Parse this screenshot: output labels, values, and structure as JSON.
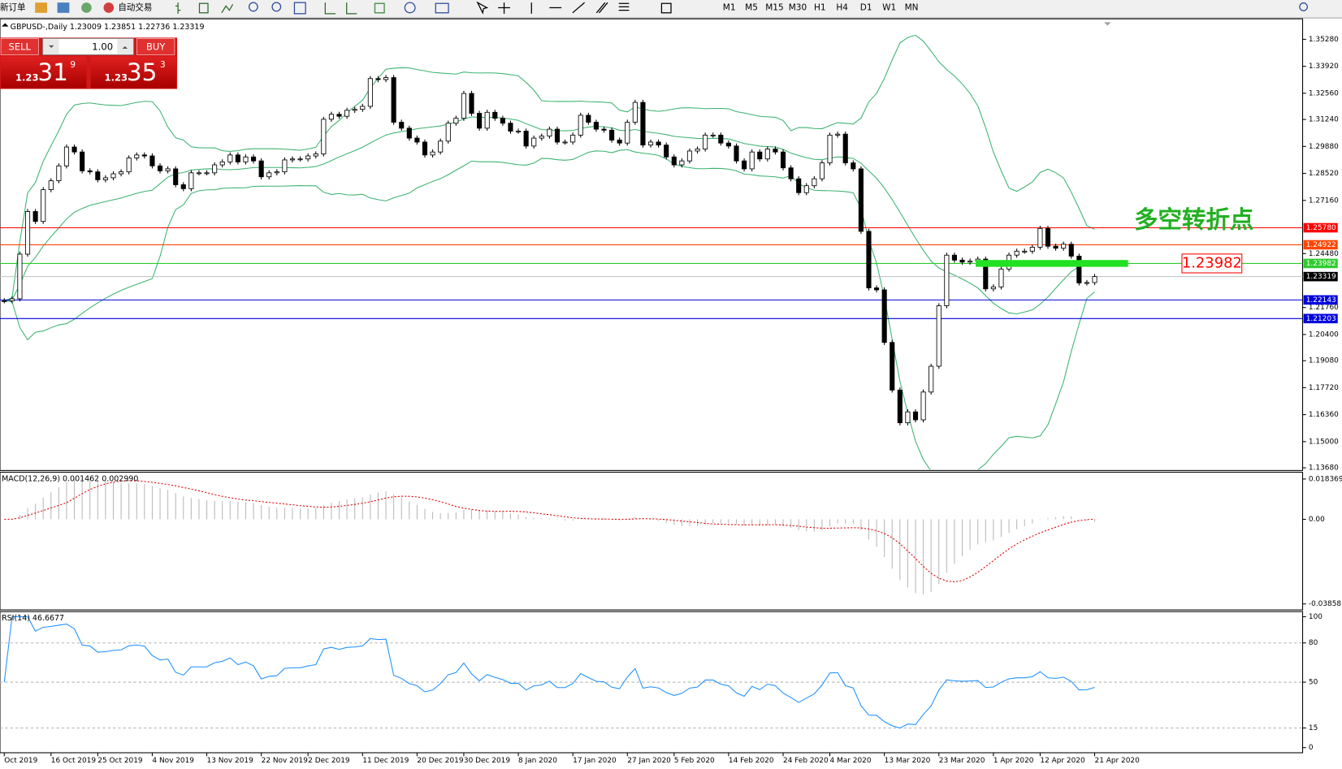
{
  "toolbar": {
    "new_order": "新订单",
    "auto_trading": "自动交易",
    "timeframes": [
      "M1",
      "M5",
      "M15",
      "M30",
      "H1",
      "H4",
      "D1",
      "W1",
      "MN"
    ]
  },
  "order_panel": {
    "sell": "SELL",
    "buy": "BUY",
    "lots": "1.00",
    "sell_price": {
      "big": "1.23",
      "main": "31",
      "pip": "9"
    },
    "buy_price": {
      "big": "1.23",
      "main": "35",
      "pip": "3"
    }
  },
  "chart_data": {
    "type": "candlestick",
    "title": "GBPUSD-,Daily  1.23009 1.23851 1.22736 1.23319",
    "values": [
      1.221,
      1.222,
      1.2445,
      1.266,
      1.261,
      1.277,
      1.2815,
      1.289,
      1.2985,
      1.296,
      1.2865,
      1.286,
      1.282,
      1.283,
      1.285,
      1.286,
      1.293,
      1.2945,
      1.294,
      1.289,
      1.2865,
      1.2875,
      1.2795,
      1.2775,
      1.2855,
      1.2855,
      1.2855,
      1.2895,
      1.291,
      1.2945,
      1.291,
      1.2935,
      1.2915,
      1.2835,
      1.2855,
      1.286,
      1.292,
      1.2925,
      1.2925,
      1.294,
      1.295,
      1.3125,
      1.315,
      1.314,
      1.317,
      1.3175,
      1.319,
      1.333,
      1.3325,
      1.3335,
      1.311,
      1.308,
      1.303,
      1.301,
      1.2945,
      1.296,
      1.3015,
      1.3105,
      1.313,
      1.3255,
      1.3155,
      1.308,
      1.316,
      1.313,
      1.3105,
      1.3065,
      1.3065,
      1.299,
      1.303,
      1.304,
      1.3075,
      1.301,
      1.301,
      1.3045,
      1.3145,
      1.311,
      1.3075,
      1.307,
      1.302,
      1.3005,
      1.311,
      1.321,
      1.2995,
      1.301,
      1.2995,
      1.2935,
      1.2895,
      1.2915,
      1.2965,
      1.2975,
      1.3045,
      1.3045,
      1.3005,
      1.299,
      1.2915,
      1.2875,
      1.296,
      1.2925,
      1.2975,
      1.296,
      1.288,
      1.2825,
      1.2755,
      1.279,
      1.2825,
      1.2905,
      1.3045,
      1.305,
      1.2905,
      1.2875,
      1.256,
      1.2275,
      1.2265,
      1.2,
      1.176,
      1.1595,
      1.165,
      1.161,
      1.175,
      1.188,
      1.2185,
      1.244,
      1.2415,
      1.2405,
      1.241,
      1.242,
      1.227,
      1.228,
      1.237,
      1.244,
      1.246,
      1.246,
      1.248,
      1.2575,
      1.2485,
      1.2475,
      1.2495,
      1.2435,
      1.23,
      1.2302,
      1.23319
    ],
    "ylim": [
      1.1359,
      1.3614
    ],
    "yticks": [
      {
        "value": 1.3528,
        "label": "1.35280"
      },
      {
        "value": 1.3392,
        "label": "1.33920"
      },
      {
        "value": 1.3256,
        "label": "1.32560"
      },
      {
        "value": 1.3124,
        "label": "1.31240"
      },
      {
        "value": 1.2988,
        "label": "1.29880"
      },
      {
        "value": 1.2852,
        "label": "1.28520"
      },
      {
        "value": 1.2716,
        "label": "1.27160"
      },
      {
        "value": 1.2448,
        "label": "1.24480"
      },
      {
        "value": 1.2176,
        "label": "1.21760"
      },
      {
        "value": 1.204,
        "label": "1.20400"
      },
      {
        "value": 1.1908,
        "label": "1.19080"
      },
      {
        "value": 1.1772,
        "label": "1.17720"
      },
      {
        "value": 1.1636,
        "label": "1.16360"
      },
      {
        "value": 1.15,
        "label": "1.15000"
      },
      {
        "value": 1.1368,
        "label": "1.13680"
      }
    ],
    "xticks": [
      {
        "value": 0,
        "label": "Oct 2019"
      },
      {
        "value": 6,
        "label": "16 Oct 2019"
      },
      {
        "value": 12,
        "label": "25 Oct 2019"
      },
      {
        "value": 19,
        "label": "4 Nov 2019"
      },
      {
        "value": 26,
        "label": "13 Nov 2019"
      },
      {
        "value": 33,
        "label": "22 Nov 2019"
      },
      {
        "value": 39,
        "label": "2 Dec 2019"
      },
      {
        "value": 46,
        "label": "11 Dec 2019"
      },
      {
        "value": 53,
        "label": "20 Dec 2019"
      },
      {
        "value": 59,
        "label": "30 Dec 2019"
      },
      {
        "value": 66,
        "label": "8 Jan 2020"
      },
      {
        "value": 73,
        "label": "17 Jan 2020"
      },
      {
        "value": 80,
        "label": "27 Jan 2020"
      },
      {
        "value": 86,
        "label": "5 Feb 2020"
      },
      {
        "value": 93,
        "label": "14 Feb 2020"
      },
      {
        "value": 100,
        "label": "24 Feb 2020"
      },
      {
        "value": 106,
        "label": "4 Mar 2020"
      },
      {
        "value": 113,
        "label": "13 Mar 2020"
      },
      {
        "value": 120,
        "label": "23 Mar 2020"
      },
      {
        "value": 127,
        "label": "1 Apr 2020"
      },
      {
        "value": 133,
        "label": "12 Apr 2020"
      },
      {
        "value": 140,
        "label": "21 Apr 2020"
      }
    ],
    "levels": [
      {
        "value": 1.2578,
        "label": "1.25780",
        "color": "#ff0000"
      },
      {
        "value": 1.24922,
        "label": "1.24922",
        "color": "#ff4500"
      },
      {
        "value": 1.23982,
        "label": "1.23982",
        "color": "#2ecc2e"
      },
      {
        "value": 1.23319,
        "label": "1.23319",
        "color": "#000000",
        "line_color": "#c0c0c0"
      },
      {
        "value": 1.22143,
        "label": "1.22143",
        "color": "#0000dd"
      },
      {
        "value": 1.21203,
        "label": "1.21203",
        "color": "#0000dd"
      }
    ],
    "annotation": "多空转折点",
    "macd_title": "MACD(12,26,9) 0.001462 0.002990",
    "macd_ylim": [
      -0.038585,
      0.018369
    ],
    "macd_yticks": [
      0.018369,
      {
        "value": 0,
        "label": "0.00"
      },
      -0.038585
    ],
    "rsi_title": "RSI(14) 46.6677",
    "rsi_ylim": [
      0,
      100
    ],
    "rsi_yticks": [
      100,
      80,
      50,
      15,
      0
    ]
  }
}
